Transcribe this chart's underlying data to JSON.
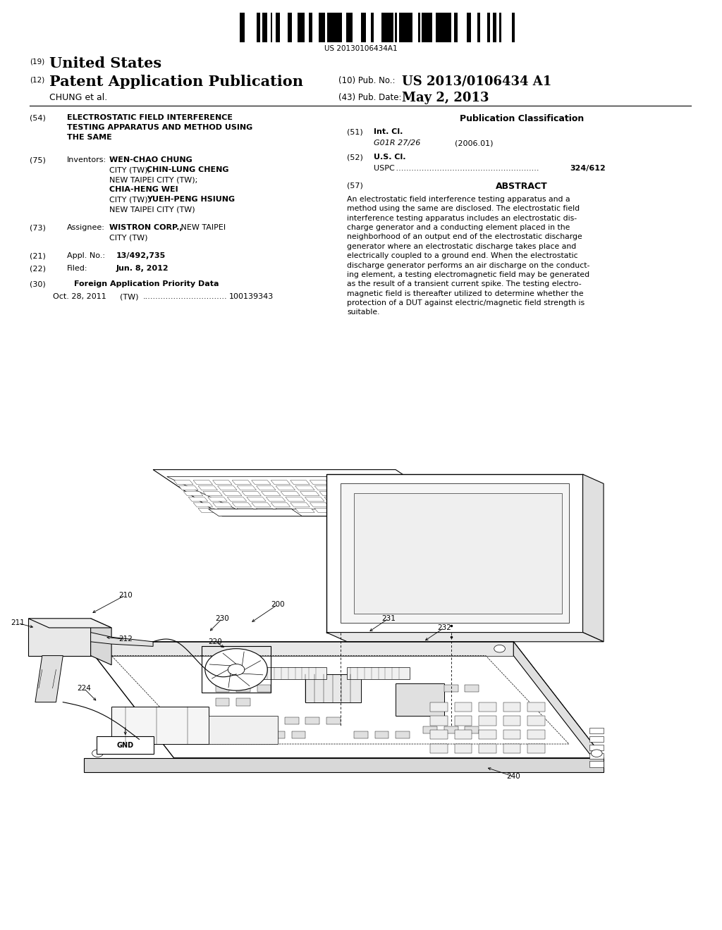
{
  "bg_color": "#ffffff",
  "barcode_text": "US 20130106434A1",
  "header": {
    "label19": "(19)",
    "title19": "United States",
    "label12": "(12)",
    "title12": "Patent Application Publication",
    "pub_no_label": "(10) Pub. No.:",
    "pub_no_value": "US 2013/0106434 A1",
    "inventor": "CHUNG et al.",
    "pub_date_label": "(43) Pub. Date:",
    "pub_date_value": "May 2, 2013"
  },
  "left_col": {
    "f54_label": "(54)",
    "f54_lines": [
      "ELECTROSTATIC FIELD INTERFERENCE",
      "TESTING APPARATUS AND METHOD USING",
      "THE SAME"
    ],
    "f75_label": "(75)",
    "f75_inventors_label": "Inventors:",
    "f75_inventors_bold": [
      "WEN-CHAO CHUNG",
      "CHIN-LUNG CHENG",
      "CHIA-HENG WEI",
      "YUEH-PENG HSIUNG"
    ],
    "f75_inventors_text": "WEN-CHAO CHUNG, NEW TAIPEI\n        CITY (TW); CHIN-LUNG CHENG,\n        NEW TAIPEI CITY (TW);\n        CHIA-HENG WEI, NEW TAIPEI\n        CITY (TW); YUEH-PENG HSIUNG,\n        NEW TAIPEI CITY (TW)",
    "f73_label": "(73)",
    "f73_assignee_label": "Assignee:",
    "f73_assignee_bold": "WISTRON CORP.,",
    "f73_assignee_text": "WISTRON CORP., NEW TAIPEI\n        CITY (TW)",
    "f21_label": "(21)",
    "f21_title": "Appl. No.:",
    "f21_value": "13/492,735",
    "f22_label": "(22)",
    "f22_title": "Filed:",
    "f22_value": "Jun. 8, 2012",
    "f30_label": "(30)",
    "f30_title": "Foreign Application Priority Data",
    "f30_entry": "Oct. 28, 2011    (TW) .................................  100139343"
  },
  "right_col": {
    "pub_class_title": "Publication Classification",
    "f51_label": "(51)",
    "f51_title": "Int. Cl.",
    "f51_class": "G01R 27/26",
    "f51_year": "(2006.01)",
    "f52_label": "(52)",
    "f52_title": "U.S. Cl.",
    "f52_uspc_label": "USPC",
    "f52_uspc_dots": " ........................................................",
    "f52_uspc_value": "324/612",
    "f57_label": "(57)",
    "f57_title": "ABSTRACT",
    "abstract": "An electrostatic field interference testing apparatus and a\nmethod using the same are disclosed. The electrostatic field\ninterference testing apparatus includes an electrostatic dis-\ncharge generator and a conducting element placed in the\nneighborhood of an output end of the electrostatic discharge\ngenerator where an electrostatic discharge takes place and\nelectrically coupled to a ground end. When the electrostatic\ndischarge generator performs an air discharge on the conduct-\ning element, a testing electromagnetic field may be generated\nas the result of a transient current spike. The testing electro-\nmagnetic field is thereafter utilized to determine whether the\nprotection of a DUT against electric/magnetic field strength is\nsuitable."
  },
  "diagram": {
    "labels": [
      "200",
      "210",
      "211",
      "212",
      "220",
      "224",
      "230",
      "231",
      "232",
      "240",
      "GND"
    ]
  }
}
